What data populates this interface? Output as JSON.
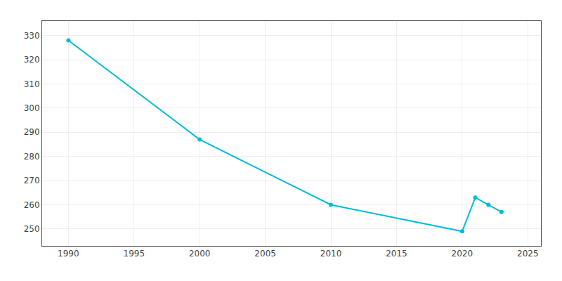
{
  "chart_data": {
    "type": "line",
    "x": [
      1990,
      2000,
      2010,
      2020,
      2021,
      2022,
      2023
    ],
    "values": [
      328,
      287,
      260,
      249,
      263,
      260,
      257
    ],
    "color": "#00bcd4",
    "marker": "circle",
    "xlim": [
      1988,
      2026
    ],
    "ylim": [
      243,
      336
    ],
    "xticks": [
      1990,
      1995,
      2000,
      2005,
      2010,
      2015,
      2020,
      2025
    ],
    "yticks": [
      250,
      260,
      270,
      280,
      290,
      300,
      310,
      320,
      330
    ],
    "grid": true
  }
}
